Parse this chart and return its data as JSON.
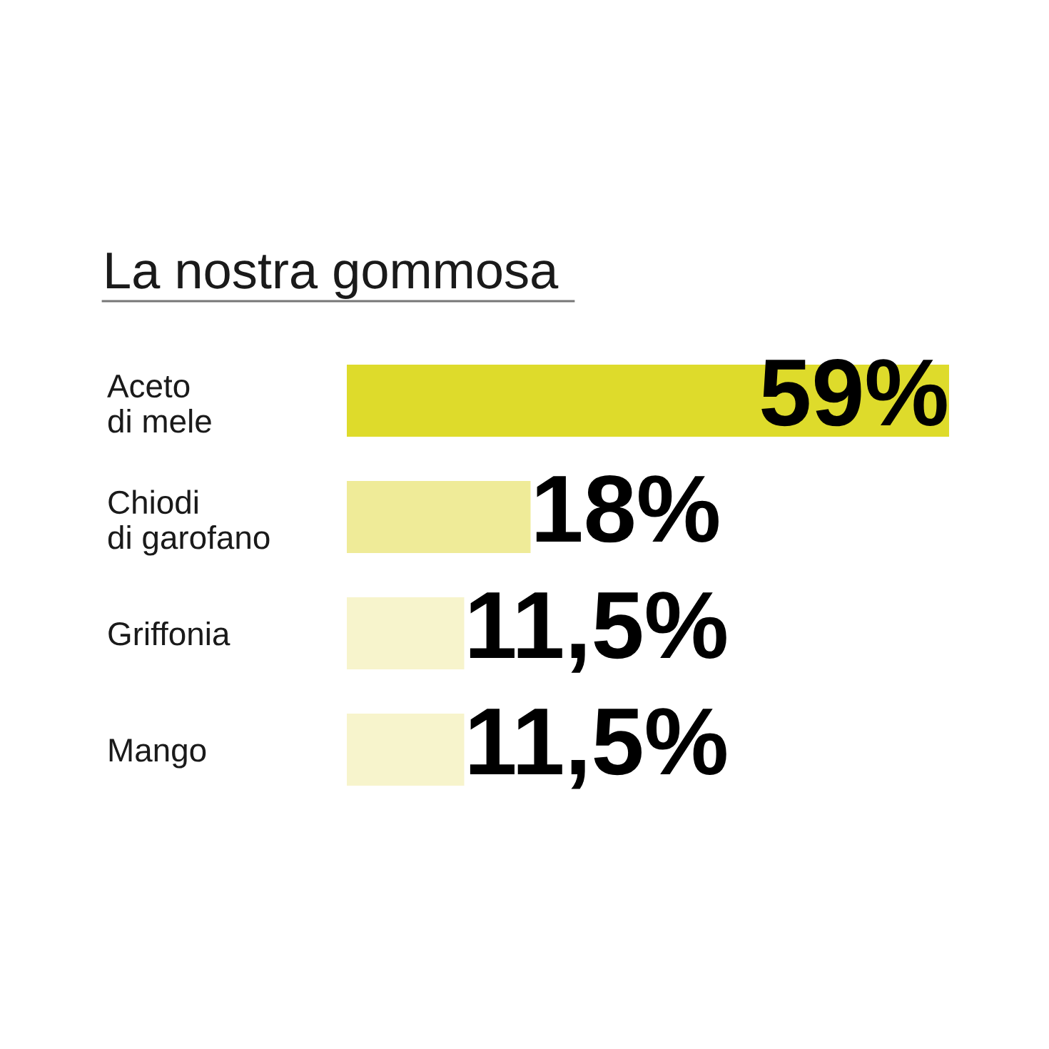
{
  "chart_data": {
    "type": "bar",
    "orientation": "horizontal",
    "title": "La nostra gommosa",
    "categories": [
      "Aceto\ndi mele",
      "Chiodi\ndi garofano",
      "Griffonia",
      "Mango"
    ],
    "values": [
      59,
      18,
      11.5,
      11.5
    ],
    "colors": [
      "#dedb2b",
      "#efeb98",
      "#f7f4cc",
      "#f7f4cc"
    ],
    "value_labels": [
      "59%",
      "18%",
      "11,5%",
      "11,5%"
    ],
    "grid": false,
    "legend": false
  }
}
